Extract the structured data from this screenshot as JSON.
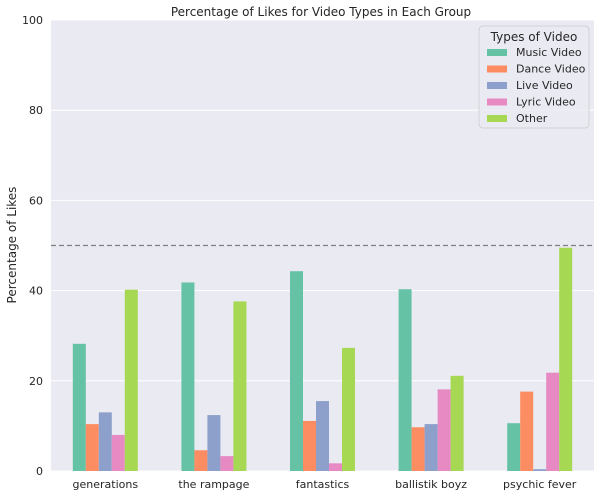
{
  "chart_data": {
    "type": "bar",
    "title": "Percentage of Likes for Video Types in Each Group",
    "xlabel": "",
    "ylabel": "Percentage of Likes",
    "ylim": [
      0,
      100
    ],
    "yticks": [
      0,
      20,
      40,
      60,
      80,
      100
    ],
    "grid": true,
    "legend": {
      "title": "Types of Video",
      "placement": "top-right"
    },
    "reference_line": {
      "y": 50,
      "style": "dashed",
      "color": "#808080"
    },
    "categories": [
      "generations",
      "the rampage",
      "fantastics",
      "ballistik boyz",
      "psychic fever"
    ],
    "series": [
      {
        "name": "Music Video",
        "color": "#66c2a5",
        "values": [
          28.2,
          41.8,
          44.3,
          40.3,
          10.6
        ]
      },
      {
        "name": "Dance Video",
        "color": "#fc8d62",
        "values": [
          10.4,
          4.6,
          11.1,
          9.7,
          17.6
        ]
      },
      {
        "name": "Live Video",
        "color": "#8da0cb",
        "values": [
          13.0,
          12.4,
          15.5,
          10.4,
          0.4
        ]
      },
      {
        "name": "Lyric Video",
        "color": "#e78ac3",
        "values": [
          8.0,
          3.3,
          1.7,
          18.1,
          21.8
        ]
      },
      {
        "name": "Other",
        "color": "#a6d854",
        "values": [
          40.2,
          37.6,
          27.3,
          21.1,
          49.5
        ]
      }
    ]
  }
}
